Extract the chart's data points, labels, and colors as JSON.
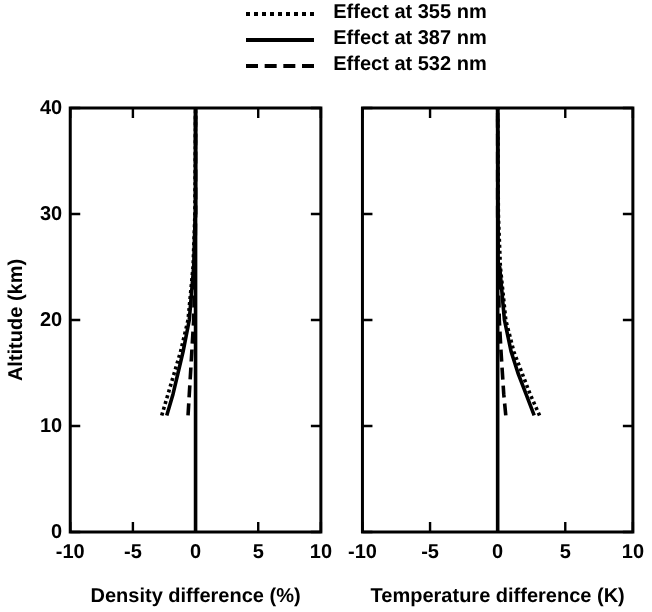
{
  "chart_data": [
    {
      "type": "line",
      "xlabel": "Density difference (%)",
      "ylabel": "Altitude (km)",
      "xlim": [
        -10,
        10
      ],
      "xticks": [
        -10,
        -5,
        0,
        5,
        10
      ],
      "ylim": [
        0,
        40
      ],
      "yticks": [
        0,
        10,
        20,
        30,
        40
      ],
      "legend": "top",
      "marker": "none",
      "ref_lines": [
        {
          "axis": "x",
          "value": 0,
          "color": "#000000",
          "line_style": "solid"
        }
      ],
      "series": [
        {
          "name": "Effect at 355 nm",
          "color": "#000000",
          "line_style": "dotted",
          "x": [
            -2.7,
            -2.2,
            -1.7,
            -1.2,
            -0.6,
            -0.2,
            -0.05,
            0
          ],
          "values": [
            11,
            13,
            15,
            17,
            20,
            25,
            30,
            40
          ]
        },
        {
          "name": "Effect at 387 nm",
          "color": "#000000",
          "line_style": "solid",
          "x": [
            -2.3,
            -1.8,
            -1.4,
            -1.0,
            -0.5,
            -0.15,
            -0.03,
            0
          ],
          "values": [
            11,
            13,
            15,
            17,
            20,
            25,
            30,
            40
          ]
        },
        {
          "name": "Effect at 532 nm",
          "color": "#000000",
          "line_style": "dashed",
          "x": [
            -0.6,
            -0.5,
            -0.4,
            -0.3,
            -0.15,
            -0.05,
            0,
            0
          ],
          "values": [
            11,
            13,
            15,
            17,
            20,
            25,
            30,
            40
          ]
        }
      ]
    },
    {
      "type": "line",
      "xlabel": "Temperature difference (K)",
      "xlim": [
        -10,
        10
      ],
      "xticks": [
        -10,
        -5,
        0,
        5,
        10
      ],
      "ylim": [
        0,
        40
      ],
      "yticks": [
        0,
        10,
        20,
        30,
        40
      ],
      "tick_labels": "x",
      "marker": "none",
      "ref_lines": [
        {
          "axis": "x",
          "value": 0,
          "color": "#000000",
          "line_style": "solid"
        }
      ],
      "series": [
        {
          "color": "#000000",
          "line_style": "dotted",
          "x": [
            3.1,
            2.4,
            1.8,
            1.2,
            0.6,
            0.2,
            0.05,
            0
          ],
          "values": [
            11,
            13,
            15,
            17,
            20,
            25,
            30,
            40
          ]
        },
        {
          "color": "#000000",
          "line_style": "solid",
          "x": [
            2.7,
            2.1,
            1.5,
            1.0,
            0.5,
            0.15,
            0.03,
            0
          ],
          "values": [
            11,
            13,
            15,
            17,
            20,
            25,
            30,
            40
          ]
        },
        {
          "color": "#000000",
          "line_style": "dashed",
          "x": [
            0.6,
            0.45,
            0.35,
            0.25,
            0.12,
            0.04,
            0,
            0
          ],
          "values": [
            11,
            13,
            15,
            17,
            20,
            25,
            30,
            40
          ]
        }
      ]
    }
  ]
}
